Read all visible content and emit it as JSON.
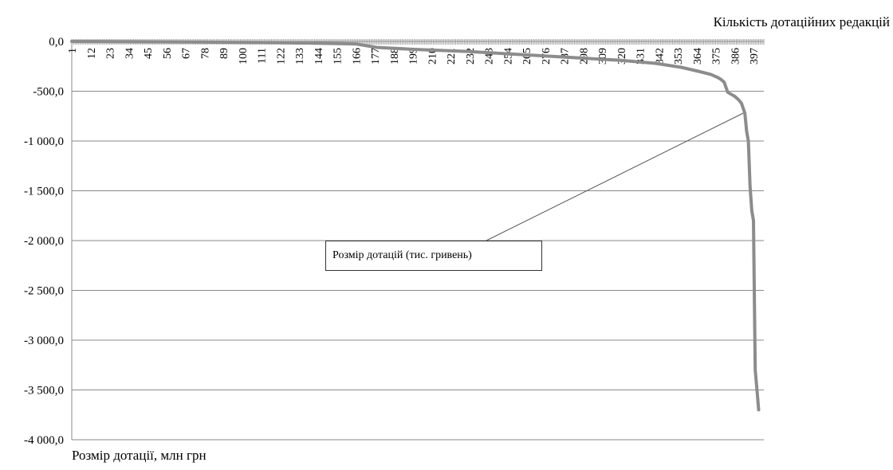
{
  "chart_data": {
    "type": "line",
    "xlabel": "Кількість дотаційних редакцій",
    "ylabel": "Розмір дотації, млн грн",
    "ylim": [
      -4000,
      0
    ],
    "yticks": [
      0,
      -500,
      -1000,
      -1500,
      -2000,
      -2500,
      -3000,
      -3500,
      -4000
    ],
    "ytick_labels": [
      "0,0",
      "-500,0",
      "-1 000,0",
      "-1 500,0",
      "-2 000,0",
      "-2 500,0",
      "-3 000,0",
      "-3 500,0",
      "-4 000,0"
    ],
    "xlim": [
      1,
      403
    ],
    "xticks": [
      1,
      12,
      23,
      34,
      45,
      56,
      67,
      78,
      89,
      100,
      111,
      122,
      133,
      144,
      155,
      166,
      177,
      188,
      199,
      210,
      221,
      232,
      243,
      254,
      265,
      276,
      287,
      298,
      309,
      320,
      331,
      342,
      353,
      364,
      375,
      386,
      397
    ],
    "grid": "horizontal",
    "series": [
      {
        "name": "Розмір дотацій (тис. гривень)",
        "color": "#8c8c8c",
        "x": [
          1,
          60,
          120,
          166,
          178,
          200,
          230,
          260,
          290,
          320,
          340,
          355,
          365,
          372,
          376,
          378,
          380,
          382,
          384,
          386,
          388,
          390,
          392,
          393,
          394,
          395,
          396,
          397,
          398,
          399,
          400
        ],
        "y": [
          0,
          -5,
          -12,
          -25,
          -60,
          -80,
          -100,
          -130,
          -160,
          -190,
          -220,
          -260,
          -300,
          -330,
          -360,
          -380,
          -410,
          -510,
          -530,
          -550,
          -580,
          -620,
          -720,
          -900,
          -1000,
          -1450,
          -1700,
          -1800,
          -3300,
          -3500,
          -3700
        ]
      }
    ],
    "annotation": {
      "text": "Розмір дотацій (тис. гривень)",
      "points_to_x": 392,
      "points_to_y": -720
    }
  }
}
